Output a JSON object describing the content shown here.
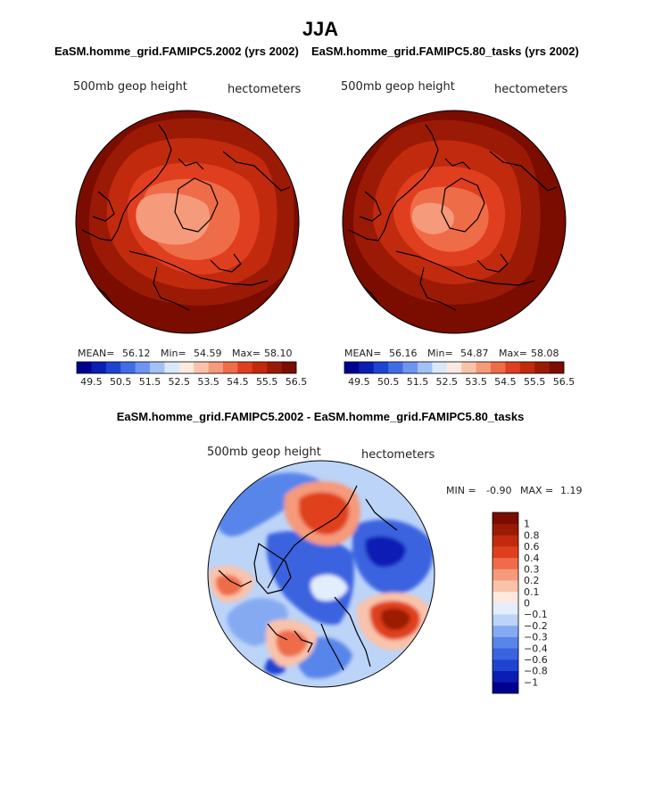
{
  "page": {
    "title": "JJA"
  },
  "panels": [
    {
      "case_title": "EaSM.homme_grid.FAMIPC5.2002 (yrs 2002)",
      "variable": "500mb geop height",
      "units": "hectometers",
      "mean_label": "MEAN=",
      "mean_value": "56.12",
      "min_label": "Min=",
      "min_value": "54.59",
      "max_label": "Max=",
      "max_value": "58.10"
    },
    {
      "case_title": "EaSM.homme_grid.FAMIPC5.80_tasks (yrs 2002)",
      "variable": "500mb geop height",
      "units": "hectometers",
      "mean_label": "MEAN=",
      "mean_value": "56.16",
      "min_label": "Min=",
      "min_value": "54.87",
      "max_label": "Max=",
      "max_value": "58.08"
    }
  ],
  "diff_panel": {
    "title": "EaSM.homme_grid.FAMIPC5.2002 - EaSM.homme_grid.FAMIPC5.80_tasks",
    "variable": "500mb geop height",
    "units": "hectometers",
    "min_label": "MIN =",
    "min_value": "-0.90",
    "max_label": "MAX =",
    "max_value": "1.19"
  },
  "chart_data": [
    {
      "type": "heatmap",
      "projection": "north-polar-stereographic",
      "title": "EaSM.homme_grid.FAMIPC5.2002 (yrs 2002)",
      "field": "500mb geop height",
      "units": "hectometers",
      "mean": 56.12,
      "min": 54.59,
      "max": 58.1,
      "levels": [
        49.5,
        50,
        50.5,
        51,
        51.5,
        52,
        52.5,
        53,
        53.5,
        54,
        54.5,
        55,
        55.5,
        56,
        56.5
      ],
      "colorbar_tick_labels": [
        "49.5",
        "50.5",
        "51.5",
        "52.5",
        "53.5",
        "54.5",
        "55.5",
        "56.5"
      ]
    },
    {
      "type": "heatmap",
      "projection": "north-polar-stereographic",
      "title": "EaSM.homme_grid.FAMIPC5.80_tasks (yrs 2002)",
      "field": "500mb geop height",
      "units": "hectometers",
      "mean": 56.16,
      "min": 54.87,
      "max": 58.08,
      "levels": [
        49.5,
        50,
        50.5,
        51,
        51.5,
        52,
        52.5,
        53,
        53.5,
        54,
        54.5,
        55,
        55.5,
        56,
        56.5
      ],
      "colorbar_tick_labels": [
        "49.5",
        "50.5",
        "51.5",
        "52.5",
        "53.5",
        "54.5",
        "55.5",
        "56.5"
      ]
    },
    {
      "type": "heatmap",
      "projection": "north-polar-stereographic",
      "title": "EaSM.homme_grid.FAMIPC5.2002 - EaSM.homme_grid.FAMIPC5.80_tasks",
      "field": "500mb geop height",
      "units": "hectometers",
      "min": -0.9,
      "max": 1.19,
      "levels": [
        -1,
        -0.8,
        -0.6,
        -0.4,
        -0.3,
        -0.2,
        -0.1,
        0,
        0.1,
        0.2,
        0.3,
        0.4,
        0.6,
        0.8,
        1
      ],
      "colorbar_tick_labels": [
        "1",
        "0.8",
        "0.6",
        "0.4",
        "0.3",
        "0.2",
        "0.1",
        "0",
        "−0.1",
        "−0.2",
        "−0.3",
        "−0.4",
        "−0.6",
        "−0.8",
        "−1"
      ]
    }
  ],
  "colors": {
    "abs_scale": [
      "#00008f",
      "#0a1eb4",
      "#1f44d2",
      "#3f6de6",
      "#6e96f0",
      "#a4c1f6",
      "#dae8fb",
      "#fde9df",
      "#f9c3ab",
      "#f59a7a",
      "#ef6c48",
      "#e03f1f",
      "#c22a0e",
      "#9b1a05",
      "#7a0c00"
    ],
    "diff_scale": [
      "#00008f",
      "#0a1eb4",
      "#1f44d2",
      "#3a63e0",
      "#5985ea",
      "#86aaf2",
      "#bcd4f8",
      "#e3eefc",
      "#fde9df",
      "#f9c3ab",
      "#f59a7a",
      "#ef6c48",
      "#e03f1f",
      "#c22a0e",
      "#9b1a05",
      "#7a0c00"
    ]
  }
}
